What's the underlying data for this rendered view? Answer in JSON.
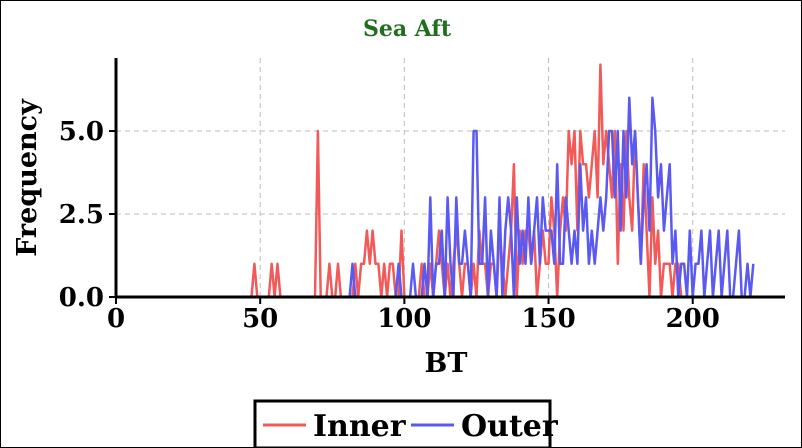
{
  "chart_data": {
    "type": "line",
    "title": "Sea Aft",
    "title_color": "#1f6f1f",
    "xlabel": "BT",
    "ylabel": "Frequency",
    "xlim": [
      0,
      232
    ],
    "ylim": [
      0,
      7.2
    ],
    "x_ticks": [
      "0",
      "50",
      "100",
      "150",
      "200"
    ],
    "y_ticks": [
      "0.0",
      "2.5",
      "5.0"
    ],
    "grid": true,
    "legend_placement": "bottom-center",
    "series": [
      {
        "name": "Inner",
        "color": "#f25a5a",
        "points": [
          [
            0,
            0
          ],
          [
            47,
            0
          ],
          [
            48,
            1
          ],
          [
            49,
            0
          ],
          [
            53,
            0
          ],
          [
            54,
            1
          ],
          [
            55,
            0
          ],
          [
            56,
            1
          ],
          [
            57,
            0
          ],
          [
            69,
            0
          ],
          [
            70,
            5
          ],
          [
            71,
            0
          ],
          [
            73,
            0
          ],
          [
            74,
            1
          ],
          [
            75,
            0
          ],
          [
            76,
            0
          ],
          [
            77,
            1
          ],
          [
            78,
            0
          ],
          [
            82,
            0
          ],
          [
            83,
            1
          ],
          [
            84,
            0
          ],
          [
            85,
            1
          ],
          [
            86,
            1
          ],
          [
            87,
            2
          ],
          [
            88,
            1
          ],
          [
            89,
            2
          ],
          [
            90,
            1
          ],
          [
            91,
            1
          ],
          [
            92,
            0
          ],
          [
            93,
            1
          ],
          [
            94,
            0
          ],
          [
            95,
            1
          ],
          [
            96,
            1
          ],
          [
            97,
            0
          ],
          [
            98,
            0
          ],
          [
            99,
            2
          ],
          [
            100,
            0
          ],
          [
            105,
            0
          ],
          [
            106,
            1
          ],
          [
            107,
            0
          ],
          [
            108,
            0
          ],
          [
            109,
            1
          ],
          [
            110,
            0
          ],
          [
            111,
            1
          ],
          [
            112,
            2
          ],
          [
            113,
            1
          ],
          [
            114,
            0
          ],
          [
            115,
            1
          ],
          [
            116,
            0
          ],
          [
            117,
            1
          ],
          [
            118,
            2
          ],
          [
            119,
            1
          ],
          [
            120,
            0
          ],
          [
            121,
            1
          ],
          [
            122,
            1
          ],
          [
            123,
            0
          ],
          [
            124,
            1
          ],
          [
            125,
            0
          ],
          [
            126,
            2
          ],
          [
            127,
            1
          ],
          [
            128,
            1
          ],
          [
            129,
            0
          ],
          [
            130,
            1
          ],
          [
            131,
            1
          ],
          [
            132,
            0
          ],
          [
            133,
            2
          ],
          [
            134,
            1
          ],
          [
            135,
            0
          ],
          [
            136,
            1
          ],
          [
            137,
            2
          ],
          [
            138,
            4
          ],
          [
            139,
            0
          ],
          [
            140,
            2
          ],
          [
            141,
            1
          ],
          [
            142,
            2
          ],
          [
            143,
            2
          ],
          [
            144,
            1
          ],
          [
            145,
            2
          ],
          [
            146,
            0
          ],
          [
            147,
            1
          ],
          [
            148,
            2
          ],
          [
            149,
            1
          ],
          [
            150,
            1
          ],
          [
            151,
            3
          ],
          [
            152,
            2
          ],
          [
            153,
            0
          ],
          [
            154,
            2
          ],
          [
            155,
            3
          ],
          [
            156,
            2
          ],
          [
            157,
            5
          ],
          [
            158,
            4
          ],
          [
            159,
            5
          ],
          [
            160,
            2
          ],
          [
            161,
            5
          ],
          [
            162,
            4
          ],
          [
            163,
            4
          ],
          [
            164,
            3
          ],
          [
            165,
            4
          ],
          [
            166,
            5
          ],
          [
            167,
            3
          ],
          [
            168,
            7
          ],
          [
            169,
            4
          ],
          [
            170,
            5
          ],
          [
            171,
            4
          ],
          [
            172,
            3
          ],
          [
            173,
            5
          ],
          [
            174,
            1
          ],
          [
            175,
            4
          ],
          [
            176,
            2
          ],
          [
            177,
            5
          ],
          [
            178,
            3
          ],
          [
            179,
            2
          ],
          [
            180,
            5
          ],
          [
            181,
            3
          ],
          [
            182,
            1
          ],
          [
            183,
            4
          ],
          [
            184,
            2
          ],
          [
            185,
            0
          ],
          [
            186,
            3
          ],
          [
            187,
            1
          ],
          [
            188,
            2
          ],
          [
            189,
            0
          ],
          [
            190,
            1
          ],
          [
            191,
            1
          ],
          [
            192,
            1
          ],
          [
            193,
            0
          ],
          [
            194,
            1
          ],
          [
            195,
            1
          ],
          [
            196,
            0
          ]
        ]
      },
      {
        "name": "Outer",
        "color": "#5a5af2",
        "points": [
          [
            0,
            0
          ],
          [
            81,
            0
          ],
          [
            82,
            1
          ],
          [
            83,
            0
          ],
          [
            97,
            0
          ],
          [
            98,
            1
          ],
          [
            99,
            0
          ],
          [
            102,
            0
          ],
          [
            103,
            1
          ],
          [
            104,
            0
          ],
          [
            105,
            0
          ],
          [
            106,
            0
          ],
          [
            107,
            1
          ],
          [
            108,
            0
          ],
          [
            109,
            3
          ],
          [
            110,
            0
          ],
          [
            111,
            1
          ],
          [
            112,
            1
          ],
          [
            113,
            2
          ],
          [
            114,
            0
          ],
          [
            115,
            3
          ],
          [
            116,
            1
          ],
          [
            117,
            0
          ],
          [
            118,
            3
          ],
          [
            119,
            1
          ],
          [
            120,
            1
          ],
          [
            121,
            2
          ],
          [
            122,
            1
          ],
          [
            123,
            0
          ],
          [
            124,
            5
          ],
          [
            125,
            5
          ],
          [
            126,
            1
          ],
          [
            127,
            1
          ],
          [
            128,
            3
          ],
          [
            129,
            0
          ],
          [
            130,
            2
          ],
          [
            131,
            1
          ],
          [
            132,
            0
          ],
          [
            133,
            3
          ],
          [
            134,
            0
          ],
          [
            135,
            2
          ],
          [
            136,
            3
          ],
          [
            137,
            2
          ],
          [
            138,
            0
          ],
          [
            139,
            3
          ],
          [
            140,
            1
          ],
          [
            141,
            2
          ],
          [
            142,
            1
          ],
          [
            143,
            3
          ],
          [
            144,
            1
          ],
          [
            145,
            2
          ],
          [
            146,
            3
          ],
          [
            147,
            1
          ],
          [
            148,
            3
          ],
          [
            149,
            2
          ],
          [
            150,
            2
          ],
          [
            151,
            2
          ],
          [
            152,
            1
          ],
          [
            153,
            4
          ],
          [
            154,
            1
          ],
          [
            155,
            1
          ],
          [
            156,
            3
          ],
          [
            157,
            2
          ],
          [
            158,
            1
          ],
          [
            159,
            2
          ],
          [
            160,
            1
          ],
          [
            161,
            4
          ],
          [
            162,
            2
          ],
          [
            163,
            3
          ],
          [
            164,
            1
          ],
          [
            165,
            2
          ],
          [
            166,
            1
          ],
          [
            167,
            2
          ],
          [
            168,
            3
          ],
          [
            169,
            2
          ],
          [
            170,
            3
          ],
          [
            171,
            5
          ],
          [
            172,
            5
          ],
          [
            173,
            3
          ],
          [
            174,
            5
          ],
          [
            175,
            2
          ],
          [
            176,
            5
          ],
          [
            177,
            3
          ],
          [
            178,
            6
          ],
          [
            179,
            4
          ],
          [
            180,
            5
          ],
          [
            181,
            3
          ],
          [
            182,
            1
          ],
          [
            183,
            3
          ],
          [
            184,
            4
          ],
          [
            185,
            2
          ],
          [
            186,
            6
          ],
          [
            187,
            5
          ],
          [
            188,
            3
          ],
          [
            189,
            4
          ],
          [
            190,
            2
          ],
          [
            191,
            3
          ],
          [
            192,
            4
          ],
          [
            193,
            1
          ],
          [
            194,
            2
          ],
          [
            195,
            0
          ],
          [
            196,
            1
          ],
          [
            197,
            1
          ],
          [
            198,
            0
          ],
          [
            199,
            2
          ],
          [
            200,
            0
          ],
          [
            201,
            1
          ],
          [
            202,
            1
          ],
          [
            203,
            2
          ],
          [
            204,
            0
          ],
          [
            205,
            1
          ],
          [
            206,
            2
          ],
          [
            207,
            0
          ],
          [
            208,
            1
          ],
          [
            209,
            2
          ],
          [
            210,
            0
          ],
          [
            211,
            1
          ],
          [
            212,
            2
          ],
          [
            213,
            0
          ],
          [
            214,
            0
          ],
          [
            215,
            1
          ],
          [
            216,
            2
          ],
          [
            217,
            0
          ],
          [
            218,
            0
          ],
          [
            219,
            1
          ],
          [
            220,
            0
          ],
          [
            221,
            1
          ]
        ]
      }
    ]
  }
}
